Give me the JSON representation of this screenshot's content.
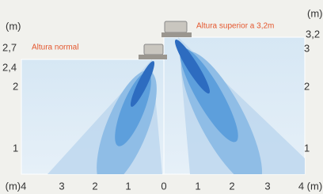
{
  "left_panel": {
    "label": "Altura normal",
    "y_axis": [
      "(m)",
      "2,7",
      "2,4",
      "2",
      "1"
    ]
  },
  "right_panel": {
    "label": "Altura superior a 3,2m",
    "y_axis": [
      "(m)",
      "3,2",
      "3",
      "2",
      "1"
    ]
  },
  "x_axis": [
    "(m)4",
    "3",
    "2",
    "1",
    "0",
    "1",
    "2",
    "3",
    "4 (m)"
  ]
}
